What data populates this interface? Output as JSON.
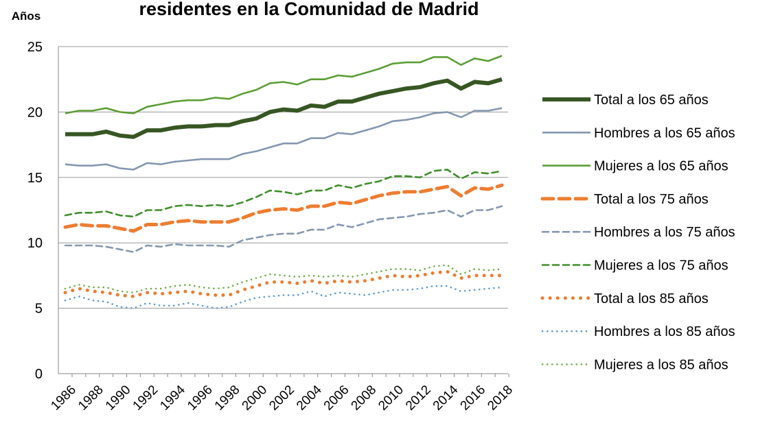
{
  "chart_data": {
    "type": "line",
    "title": "residentes en la Comunidad de Madrid",
    "y_label": "Años",
    "categories": [
      "1986",
      null,
      "1988",
      null,
      "1990",
      null,
      "1992",
      null,
      "1994",
      null,
      "1996",
      null,
      "1998",
      null,
      "2000",
      null,
      "2002",
      null,
      "2004",
      null,
      "2006",
      null,
      "2008",
      null,
      "2010",
      null,
      "2012",
      null,
      "2014",
      null,
      "2016",
      null,
      "2018"
    ],
    "ylim": [
      0,
      25
    ],
    "yticks": [
      0,
      5,
      10,
      15,
      20,
      25
    ],
    "grid": true,
    "legend": "right",
    "series": [
      {
        "name": "Total a los 65 años",
        "color": "#375623",
        "dash": "solid",
        "thick": true,
        "values": [
          18.3,
          18.3,
          18.3,
          18.5,
          18.2,
          18.1,
          18.6,
          18.6,
          18.8,
          18.9,
          18.9,
          19.0,
          19.0,
          19.3,
          19.5,
          20.0,
          20.2,
          20.1,
          20.5,
          20.4,
          20.8,
          20.8,
          21.1,
          21.4,
          21.6,
          21.8,
          21.9,
          22.2,
          22.4,
          21.8,
          22.3,
          22.2,
          22.5
        ]
      },
      {
        "name": "Hombres a los 65 años",
        "color": "#8497b0",
        "dash": "solid",
        "thick": false,
        "values": [
          16.0,
          15.9,
          15.9,
          16.0,
          15.7,
          15.6,
          16.1,
          16.0,
          16.2,
          16.3,
          16.4,
          16.4,
          16.4,
          16.8,
          17.0,
          17.3,
          17.6,
          17.6,
          18.0,
          18.0,
          18.4,
          18.3,
          18.6,
          18.9,
          19.3,
          19.4,
          19.6,
          19.9,
          20.0,
          19.6,
          20.1,
          20.1,
          20.3
        ]
      },
      {
        "name": "Mujeres a los 65 años",
        "color": "#5b9e35",
        "dash": "solid",
        "thick": false,
        "values": [
          19.9,
          20.1,
          20.1,
          20.3,
          20.0,
          19.9,
          20.4,
          20.6,
          20.8,
          20.9,
          20.9,
          21.1,
          21.0,
          21.4,
          21.7,
          22.2,
          22.3,
          22.1,
          22.5,
          22.5,
          22.8,
          22.7,
          23.0,
          23.3,
          23.7,
          23.8,
          23.8,
          24.2,
          24.2,
          23.6,
          24.1,
          23.9,
          24.3
        ]
      },
      {
        "name": "Total a los 75 años",
        "color": "#ed7d31",
        "dash": "dashed",
        "thick": true,
        "values": [
          11.2,
          11.4,
          11.3,
          11.3,
          11.1,
          10.9,
          11.4,
          11.4,
          11.6,
          11.7,
          11.6,
          11.6,
          11.6,
          11.9,
          12.3,
          12.5,
          12.6,
          12.5,
          12.8,
          12.8,
          13.1,
          13.0,
          13.3,
          13.6,
          13.8,
          13.9,
          13.9,
          14.1,
          14.3,
          13.6,
          14.2,
          14.1,
          14.4
        ]
      },
      {
        "name": "Hombres a los 75 años",
        "color": "#8497b0",
        "dash": "dashed",
        "thick": false,
        "values": [
          9.8,
          9.8,
          9.8,
          9.7,
          9.5,
          9.3,
          9.8,
          9.7,
          9.9,
          9.8,
          9.8,
          9.8,
          9.7,
          10.2,
          10.4,
          10.6,
          10.7,
          10.7,
          11.0,
          11.0,
          11.4,
          11.2,
          11.5,
          11.8,
          11.9,
          12.0,
          12.2,
          12.3,
          12.5,
          12.0,
          12.5,
          12.5,
          12.8
        ]
      },
      {
        "name": "Mujeres a los 75 años",
        "color": "#3f8f2a",
        "dash": "dashed",
        "thick": false,
        "values": [
          12.1,
          12.3,
          12.3,
          12.4,
          12.1,
          12.0,
          12.5,
          12.5,
          12.8,
          12.9,
          12.8,
          12.9,
          12.8,
          13.1,
          13.5,
          14.0,
          13.9,
          13.7,
          14.0,
          14.0,
          14.4,
          14.2,
          14.5,
          14.7,
          15.1,
          15.1,
          15.0,
          15.5,
          15.6,
          14.9,
          15.4,
          15.3,
          15.5
        ]
      },
      {
        "name": "Total a los 85 años",
        "color": "#ed7d31",
        "dash": "dotted",
        "thick": true,
        "values": [
          6.2,
          6.5,
          6.3,
          6.2,
          6.0,
          5.9,
          6.2,
          6.1,
          6.2,
          6.3,
          6.1,
          6.0,
          6.0,
          6.4,
          6.7,
          7.0,
          7.0,
          6.9,
          7.1,
          6.9,
          7.1,
          7.0,
          7.1,
          7.3,
          7.5,
          7.4,
          7.5,
          7.7,
          7.8,
          7.3,
          7.5,
          7.5,
          7.5
        ]
      },
      {
        "name": "Hombres a los 85 años",
        "color": "#5b9bd5",
        "dash": "dotted",
        "thick": false,
        "values": [
          5.6,
          5.9,
          5.6,
          5.5,
          5.1,
          5.0,
          5.4,
          5.2,
          5.2,
          5.4,
          5.2,
          5.0,
          5.1,
          5.5,
          5.8,
          5.9,
          6.0,
          6.0,
          6.3,
          5.9,
          6.2,
          6.1,
          6.0,
          6.2,
          6.4,
          6.4,
          6.5,
          6.7,
          6.7,
          6.3,
          6.4,
          6.5,
          6.6
        ]
      },
      {
        "name": "Mujeres a los 85 años",
        "color": "#70ad47",
        "dash": "dotted",
        "thick": false,
        "values": [
          6.5,
          6.8,
          6.6,
          6.6,
          6.3,
          6.2,
          6.5,
          6.5,
          6.7,
          6.8,
          6.6,
          6.5,
          6.6,
          7.0,
          7.3,
          7.6,
          7.5,
          7.4,
          7.5,
          7.4,
          7.5,
          7.4,
          7.6,
          7.8,
          8.0,
          8.0,
          7.9,
          8.2,
          8.3,
          7.6,
          8.0,
          7.9,
          8.0
        ]
      }
    ]
  }
}
